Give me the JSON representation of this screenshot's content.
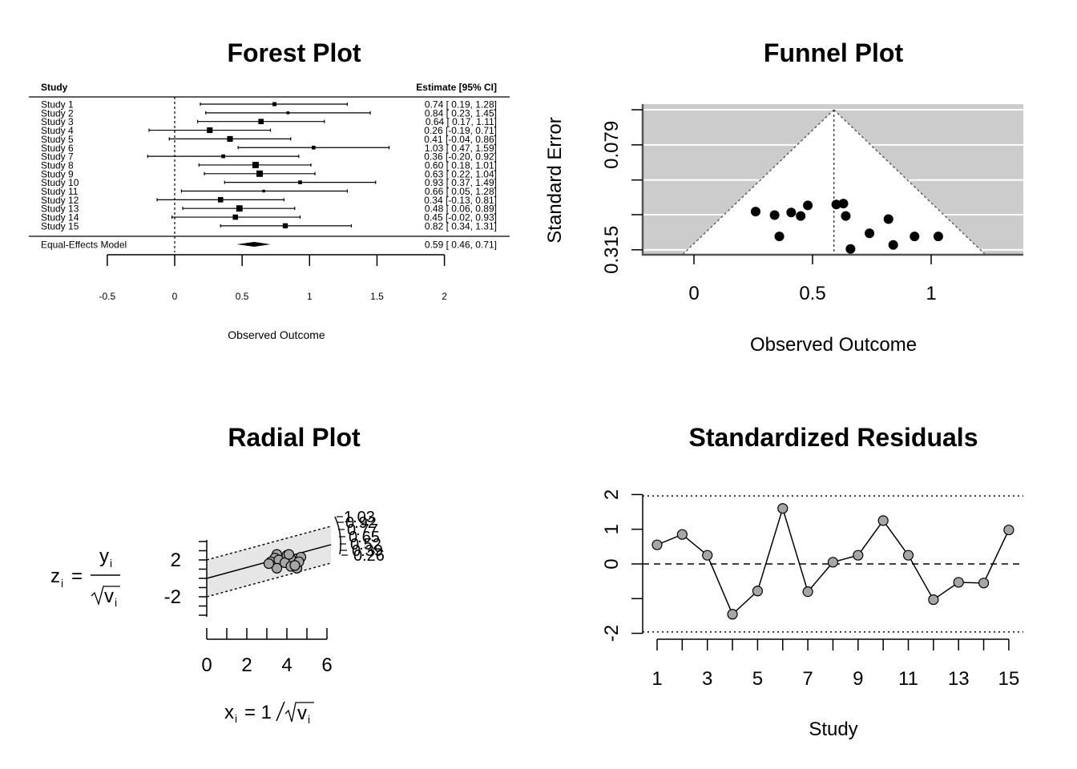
{
  "chart_data": [
    {
      "type": "forest",
      "title": "Forest Plot",
      "header_left": "Study",
      "header_right": "Estimate [95% CI]",
      "xlabel": "Observed Outcome",
      "xlim": [
        -0.5,
        2
      ],
      "ticks": [
        -0.5,
        0,
        0.5,
        1,
        1.5,
        2
      ],
      "tick_labels": [
        "-0.5",
        "0",
        "0.5",
        "1",
        "1.5",
        "2"
      ],
      "reference_line": 0,
      "studies": [
        {
          "label": "Study 1",
          "est": 0.74,
          "lo": 0.19,
          "hi": 1.28,
          "text": "0.74 [ 0.19, 1.28]"
        },
        {
          "label": "Study 2",
          "est": 0.84,
          "lo": 0.23,
          "hi": 1.45,
          "text": "0.84 [ 0.23, 1.45]"
        },
        {
          "label": "Study 3",
          "est": 0.64,
          "lo": 0.17,
          "hi": 1.11,
          "text": "0.64 [ 0.17, 1.11]"
        },
        {
          "label": "Study 4",
          "est": 0.26,
          "lo": -0.19,
          "hi": 0.71,
          "text": "0.26 [-0.19, 0.71]"
        },
        {
          "label": "Study 5",
          "est": 0.41,
          "lo": -0.04,
          "hi": 0.86,
          "text": "0.41 [-0.04, 0.86]"
        },
        {
          "label": "Study 6",
          "est": 1.03,
          "lo": 0.47,
          "hi": 1.59,
          "text": "1.03 [ 0.47, 1.59]"
        },
        {
          "label": "Study 7",
          "est": 0.36,
          "lo": -0.2,
          "hi": 0.92,
          "text": "0.36 [-0.20, 0.92]"
        },
        {
          "label": "Study 8",
          "est": 0.6,
          "lo": 0.18,
          "hi": 1.01,
          "text": "0.60 [ 0.18, 1.01]"
        },
        {
          "label": "Study 9",
          "est": 0.63,
          "lo": 0.22,
          "hi": 1.04,
          "text": "0.63 [ 0.22, 1.04]"
        },
        {
          "label": "Study 10",
          "est": 0.93,
          "lo": 0.37,
          "hi": 1.49,
          "text": "0.93 [ 0.37, 1.49]"
        },
        {
          "label": "Study 11",
          "est": 0.66,
          "lo": 0.05,
          "hi": 1.28,
          "text": "0.66 [ 0.05, 1.28]"
        },
        {
          "label": "Study 12",
          "est": 0.34,
          "lo": -0.13,
          "hi": 0.81,
          "text": "0.34 [-0.13, 0.81]"
        },
        {
          "label": "Study 13",
          "est": 0.48,
          "lo": 0.06,
          "hi": 0.89,
          "text": "0.48 [ 0.06, 0.89]"
        },
        {
          "label": "Study 14",
          "est": 0.45,
          "lo": -0.02,
          "hi": 0.93,
          "text": "0.45 [-0.02, 0.93]"
        },
        {
          "label": "Study 15",
          "est": 0.82,
          "lo": 0.34,
          "hi": 1.31,
          "text": "0.82 [ 0.34, 1.31]"
        }
      ],
      "summary": {
        "label": "Equal-Effects Model",
        "est": 0.59,
        "lo": 0.46,
        "hi": 0.71,
        "text": "0.59 [ 0.46, 0.71]"
      }
    },
    {
      "type": "scatter",
      "title": "Funnel Plot",
      "xlabel": "Observed Outcome",
      "ylabel": "Standard Error",
      "xlim": [
        -0.22,
        1.4
      ],
      "ylim": [
        0.315,
        0
      ],
      "x_ticks": [
        0,
        0.5,
        1
      ],
      "x_tick_labels": [
        "0",
        "0.5",
        "1"
      ],
      "y_ticks": [
        0,
        0.079,
        0.158,
        0.236,
        0.315
      ],
      "y_tick_labels": [
        "",
        "0.079",
        "",
        "",
        "0.315"
      ],
      "center": 0.59,
      "points": [
        {
          "x": 0.26,
          "y": 0.229
        },
        {
          "x": 0.34,
          "y": 0.237
        },
        {
          "x": 0.41,
          "y": 0.231
        },
        {
          "x": 0.45,
          "y": 0.239
        },
        {
          "x": 0.48,
          "y": 0.215
        },
        {
          "x": 0.36,
          "y": 0.285
        },
        {
          "x": 0.6,
          "y": 0.213
        },
        {
          "x": 0.63,
          "y": 0.211
        },
        {
          "x": 0.64,
          "y": 0.239
        },
        {
          "x": 0.66,
          "y": 0.313
        },
        {
          "x": 0.74,
          "y": 0.278
        },
        {
          "x": 0.82,
          "y": 0.246
        },
        {
          "x": 0.84,
          "y": 0.304
        },
        {
          "x": 0.93,
          "y": 0.285
        },
        {
          "x": 1.03,
          "y": 0.285
        }
      ]
    },
    {
      "type": "scatter",
      "title": "Radial Plot",
      "ylabel_math": {
        "lhs": "z",
        "lhs_sub": "i",
        "eq": "=",
        "num": "y",
        "num_sub": "i",
        "den": "v",
        "den_sub": "i"
      },
      "xlabel_math": {
        "lhs": "x",
        "lhs_sub": "i",
        "eq": "= 1",
        "den": "v",
        "den_sub": "i"
      },
      "xlim": [
        0,
        6.2
      ],
      "ylim": [
        -3.2,
        3.4
      ],
      "x_ticks": [
        0,
        2,
        4,
        6
      ],
      "x_tick_labels": [
        "0",
        "2",
        "4",
        "6"
      ],
      "y_ticks": [
        -2,
        2
      ],
      "y_tick_labels": [
        "-2",
        "2"
      ],
      "slope": 0.59,
      "points": [
        {
          "x": 3.5,
          "y": 2.6
        },
        {
          "x": 3.4,
          "y": 2.2
        },
        {
          "x": 3.2,
          "y": 1.8
        },
        {
          "x": 3.6,
          "y": 2.0
        },
        {
          "x": 4.0,
          "y": 2.5
        },
        {
          "x": 4.2,
          "y": 2.1
        },
        {
          "x": 4.7,
          "y": 2.3
        },
        {
          "x": 3.9,
          "y": 1.7
        },
        {
          "x": 4.2,
          "y": 1.3
        },
        {
          "x": 3.5,
          "y": 1.1
        },
        {
          "x": 4.5,
          "y": 1.1
        },
        {
          "x": 4.6,
          "y": 1.8
        },
        {
          "x": 3.1,
          "y": 1.6
        },
        {
          "x": 4.1,
          "y": 2.6
        },
        {
          "x": 4.4,
          "y": 1.4
        }
      ],
      "arc_labels": [
        "1.03",
        "0.92",
        "0.77",
        "0.65",
        "0.52",
        "0.39",
        "0.26"
      ]
    },
    {
      "type": "line",
      "title": "Standardized Residuals",
      "xlabel": "Study",
      "xlim": [
        0.6,
        15.6
      ],
      "ylim": [
        -2.1,
        2.1
      ],
      "x_ticks": [
        1,
        3,
        5,
        7,
        9,
        11,
        13,
        15
      ],
      "x_tick_labels": [
        "1",
        "3",
        "5",
        "7",
        "9",
        "11",
        "13",
        "15"
      ],
      "y_ticks": [
        -2,
        -1,
        0,
        1,
        2
      ],
      "y_tick_labels": [
        "-2",
        "",
        "0",
        "1",
        "2"
      ],
      "hlines": [
        {
          "y": 0,
          "style": "dashed"
        },
        {
          "y": 1.96,
          "style": "dotted"
        },
        {
          "y": -1.96,
          "style": "dotted"
        }
      ],
      "x": [
        1,
        2,
        3,
        4,
        5,
        6,
        7,
        8,
        9,
        10,
        11,
        12,
        13,
        14,
        15
      ],
      "values": [
        0.55,
        0.85,
        0.25,
        -1.45,
        -0.78,
        1.6,
        -0.8,
        0.05,
        0.25,
        1.25,
        0.25,
        -1.03,
        -0.53,
        -0.55,
        0.98
      ]
    }
  ]
}
